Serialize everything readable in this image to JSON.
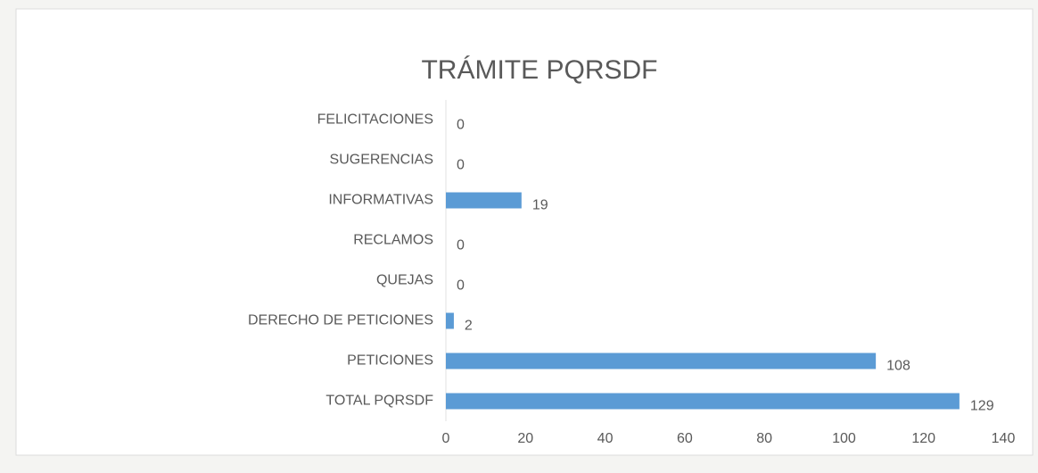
{
  "chart_data": {
    "type": "hbar",
    "title": "TRÁMITE PQRSDF",
    "categories": [
      "FELICITACIONES",
      "SUGERENCIAS",
      "INFORMATIVAS",
      "RECLAMOS",
      "QUEJAS",
      "DERECHO DE PETICIONES",
      "PETICIONES",
      "TOTAL PQRSDF"
    ],
    "values": [
      0,
      0,
      19,
      0,
      0,
      2,
      108,
      129
    ],
    "color": "#5b9bd5",
    "xlim": [
      0,
      140
    ],
    "xticks": [
      0,
      20,
      40,
      60,
      80,
      100,
      120,
      140
    ],
    "grid": false
  }
}
